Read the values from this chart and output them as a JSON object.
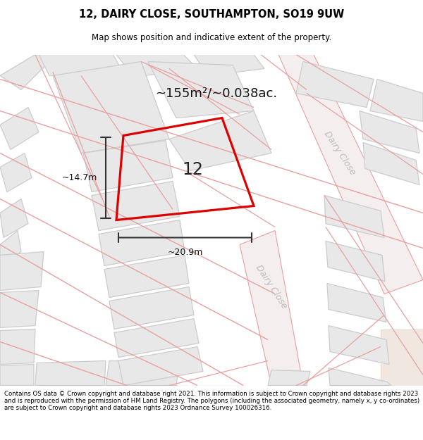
{
  "title_line1": "12, DAIRY CLOSE, SOUTHAMPTON, SO19 9UW",
  "title_line2": "Map shows position and indicative extent of the property.",
  "area_label": "~155m²/~0.038ac.",
  "number_label": "12",
  "dim_width": "~20.9m",
  "dim_height": "~14.7m",
  "street_label1": "Dairy Close",
  "street_label2": "Dairy Close",
  "footer_text": "Contains OS data © Crown copyright and database right 2021. This information is subject to Crown copyright and database rights 2023 and is reproduced with the permission of HM Land Registry. The polygons (including the associated geometry, namely x, y co-ordinates) are subject to Crown copyright and database rights 2023 Ordnance Survey 100026316.",
  "bg_color": "#ffffff",
  "map_facecolor": "#fdf8f8",
  "plot_color": "#dd0000",
  "building_fill": "#e8e8e8",
  "building_edge": "#cccccc",
  "road_line_color": "#e8a0a0",
  "road_fill": "#f5eeee",
  "title_fontsize": 10.5,
  "subtitle_fontsize": 8.5,
  "footer_fontsize": 6.2,
  "label_fontsize": 13,
  "number_fontsize": 17,
  "dim_fontsize": 9,
  "street_fontsize": 9
}
